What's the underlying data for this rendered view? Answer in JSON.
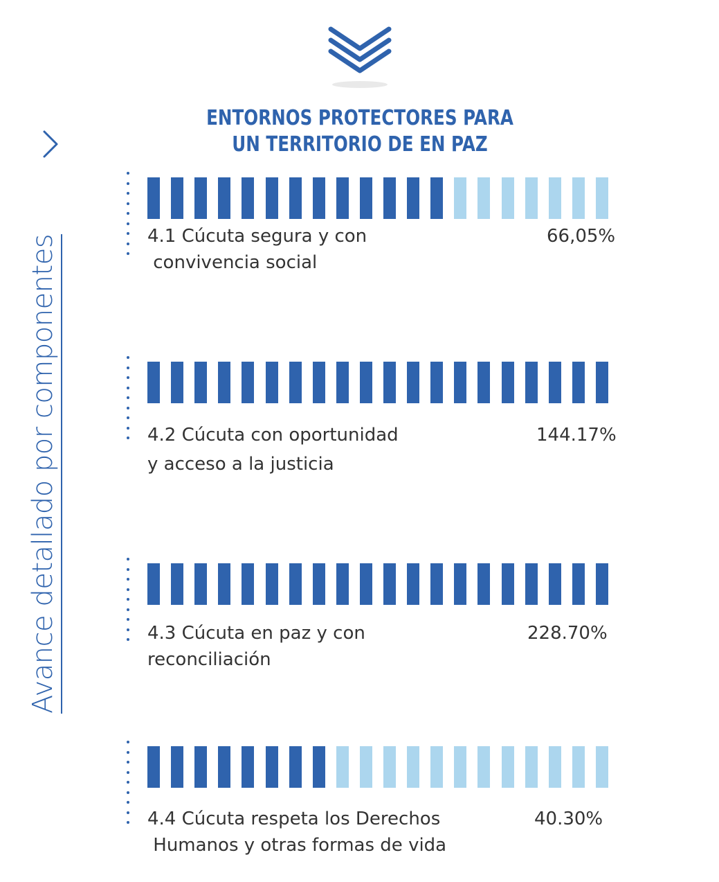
{
  "title_line1": "ENTORNOS PROTECTORES PARA",
  "title_line2": "UN TERRITORIO DE EN PAZ",
  "side_label": "Avance detallado por  componentes",
  "colors": {
    "accent": "#2f63ad",
    "light": "#acd6ee",
    "text": "#333333"
  },
  "chart_data": {
    "type": "bar",
    "total_segments": 20,
    "items": [
      {
        "line1": "4.1 Cúcuta segura y con",
        "line2": " convivencia social",
        "value_label": "66,05%",
        "value": 66.05,
        "filled_segments": 13
      },
      {
        "line1": "4.2 Cúcuta con oportunidad",
        "line2": "y acceso a la justicia",
        "value_label": "144.17%",
        "value": 144.17,
        "filled_segments": 20
      },
      {
        "line1": "4.3 Cúcuta en paz y con",
        "line2": "reconciliación",
        "value_label": "228.70%",
        "value": 228.7,
        "filled_segments": 20
      },
      {
        "line1": "4.4 Cúcuta respeta los Derechos",
        "line2": " Humanos y otras formas de vida",
        "value_label": "40.30%",
        "value": 40.3,
        "filled_segments": 8
      }
    ]
  }
}
